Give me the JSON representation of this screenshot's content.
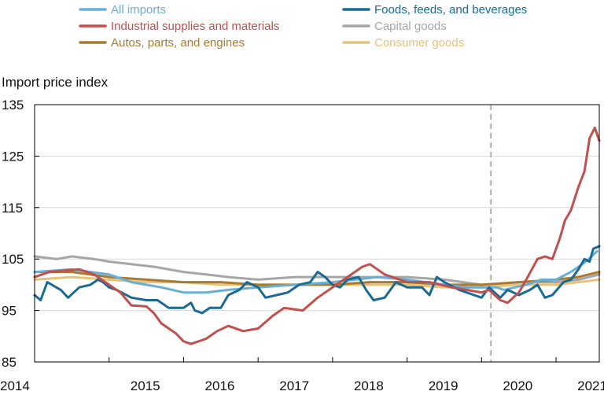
{
  "chart_data": {
    "type": "line",
    "title": "",
    "ylabel": "Import price index",
    "xlabel": "",
    "ylim": [
      85,
      135
    ],
    "xlim": [
      2014.0,
      2021.58
    ],
    "yticks": [
      85,
      95,
      105,
      115,
      125,
      135
    ],
    "xticks": [
      2014,
      2015,
      2016,
      2017,
      2018,
      2019,
      2020,
      2021
    ],
    "grid": "horizontal",
    "legend_position": "top",
    "reference_line": {
      "x": 2020.125,
      "style": "dashed",
      "color": "#999999"
    },
    "series": [
      {
        "name": "All imports",
        "color": "#6aaed6",
        "points": [
          [
            2014.0,
            102.5
          ],
          [
            2014.5,
            103
          ],
          [
            2015.0,
            102
          ],
          [
            2015.3,
            100.5
          ],
          [
            2015.7,
            99.5
          ],
          [
            2016.0,
            98.5
          ],
          [
            2016.3,
            98.5
          ],
          [
            2016.6,
            99
          ],
          [
            2017.0,
            99.5
          ],
          [
            2017.5,
            100
          ],
          [
            2018.0,
            100.5
          ],
          [
            2018.3,
            101
          ],
          [
            2018.6,
            101.5
          ],
          [
            2019.0,
            101
          ],
          [
            2019.5,
            100
          ],
          [
            2019.8,
            99.5
          ],
          [
            2020.0,
            99.5
          ],
          [
            2020.2,
            99.5
          ],
          [
            2020.3,
            99
          ],
          [
            2020.6,
            100
          ],
          [
            2020.8,
            101
          ],
          [
            2021.0,
            101
          ],
          [
            2021.2,
            102.5
          ],
          [
            2021.4,
            104.5
          ],
          [
            2021.55,
            106.5
          ]
        ]
      },
      {
        "name": "Industrial supplies and materials",
        "color": "#c0504d",
        "points": [
          [
            2014.0,
            101.5
          ],
          [
            2014.2,
            102.5
          ],
          [
            2014.6,
            103
          ],
          [
            2014.8,
            102
          ],
          [
            2015.0,
            100
          ],
          [
            2015.15,
            98.5
          ],
          [
            2015.3,
            96
          ],
          [
            2015.5,
            95.8
          ],
          [
            2015.6,
            94.5
          ],
          [
            2015.7,
            92.5
          ],
          [
            2015.9,
            90.5
          ],
          [
            2016.0,
            89
          ],
          [
            2016.1,
            88.5
          ],
          [
            2016.3,
            89.5
          ],
          [
            2016.45,
            91
          ],
          [
            2016.6,
            92
          ],
          [
            2016.8,
            91
          ],
          [
            2017.0,
            91.5
          ],
          [
            2017.2,
            94
          ],
          [
            2017.35,
            95.5
          ],
          [
            2017.6,
            95
          ],
          [
            2017.8,
            97.5
          ],
          [
            2018.0,
            99.5
          ],
          [
            2018.2,
            101.5
          ],
          [
            2018.4,
            103.5
          ],
          [
            2018.5,
            104
          ],
          [
            2018.7,
            102
          ],
          [
            2019.0,
            100.5
          ],
          [
            2019.3,
            100.5
          ],
          [
            2019.6,
            99.5
          ],
          [
            2019.8,
            99
          ],
          [
            2020.0,
            98.5
          ],
          [
            2020.1,
            99
          ],
          [
            2020.25,
            97
          ],
          [
            2020.35,
            96.5
          ],
          [
            2020.5,
            98.5
          ],
          [
            2020.6,
            101
          ],
          [
            2020.75,
            105
          ],
          [
            2020.85,
            105.5
          ],
          [
            2020.95,
            105
          ],
          [
            2021.05,
            109
          ],
          [
            2021.12,
            112.5
          ],
          [
            2021.2,
            114.5
          ],
          [
            2021.3,
            119
          ],
          [
            2021.38,
            122
          ],
          [
            2021.45,
            128.5
          ],
          [
            2021.52,
            130.5
          ],
          [
            2021.58,
            128
          ]
        ]
      },
      {
        "name": "Autos, parts, and engines",
        "color": "#a87b2f",
        "points": [
          [
            2014.0,
            102.5
          ],
          [
            2014.5,
            102.5
          ],
          [
            2015.0,
            101.5
          ],
          [
            2015.5,
            101
          ],
          [
            2016.0,
            100.5
          ],
          [
            2016.5,
            100.5
          ],
          [
            2017.0,
            100
          ],
          [
            2017.5,
            100
          ],
          [
            2018.0,
            100
          ],
          [
            2018.5,
            100.5
          ],
          [
            2019.0,
            100.5
          ],
          [
            2019.5,
            100
          ],
          [
            2020.0,
            100
          ],
          [
            2020.5,
            100.5
          ],
          [
            2021.0,
            101
          ],
          [
            2021.3,
            101.5
          ],
          [
            2021.58,
            102.5
          ]
        ]
      },
      {
        "name": "Foods, feeds, and beverages",
        "color": "#1a6a94",
        "points": [
          [
            2014.0,
            98
          ],
          [
            2014.08,
            97
          ],
          [
            2014.17,
            100.5
          ],
          [
            2014.35,
            99
          ],
          [
            2014.45,
            97.5
          ],
          [
            2014.6,
            99.5
          ],
          [
            2014.75,
            100
          ],
          [
            2014.85,
            101
          ],
          [
            2014.92,
            100.5
          ],
          [
            2015.0,
            99.5
          ],
          [
            2015.1,
            99
          ],
          [
            2015.3,
            97.5
          ],
          [
            2015.5,
            97
          ],
          [
            2015.65,
            97
          ],
          [
            2015.8,
            95.5
          ],
          [
            2016.0,
            95.5
          ],
          [
            2016.1,
            96.5
          ],
          [
            2016.15,
            95
          ],
          [
            2016.25,
            94.5
          ],
          [
            2016.35,
            95.5
          ],
          [
            2016.5,
            95.5
          ],
          [
            2016.6,
            98
          ],
          [
            2016.75,
            99
          ],
          [
            2016.85,
            100.5
          ],
          [
            2017.0,
            99.5
          ],
          [
            2017.1,
            97.5
          ],
          [
            2017.25,
            98
          ],
          [
            2017.4,
            98.5
          ],
          [
            2017.55,
            100
          ],
          [
            2017.7,
            100.5
          ],
          [
            2017.8,
            102.5
          ],
          [
            2017.9,
            101.5
          ],
          [
            2018.0,
            100
          ],
          [
            2018.1,
            99.5
          ],
          [
            2018.2,
            101
          ],
          [
            2018.35,
            101.5
          ],
          [
            2018.45,
            99
          ],
          [
            2018.55,
            97
          ],
          [
            2018.7,
            97.5
          ],
          [
            2018.85,
            100.5
          ],
          [
            2019.0,
            99.5
          ],
          [
            2019.2,
            99.5
          ],
          [
            2019.3,
            98
          ],
          [
            2019.4,
            101.5
          ],
          [
            2019.5,
            100.5
          ],
          [
            2019.7,
            99
          ],
          [
            2019.9,
            98
          ],
          [
            2020.0,
            97.5
          ],
          [
            2020.1,
            99.5
          ],
          [
            2020.25,
            97.5
          ],
          [
            2020.35,
            99
          ],
          [
            2020.5,
            98
          ],
          [
            2020.65,
            99
          ],
          [
            2020.75,
            100
          ],
          [
            2020.85,
            97.5
          ],
          [
            2020.95,
            98
          ],
          [
            2021.1,
            100.5
          ],
          [
            2021.2,
            101
          ],
          [
            2021.3,
            103
          ],
          [
            2021.38,
            105
          ],
          [
            2021.45,
            104.5
          ],
          [
            2021.5,
            107
          ],
          [
            2021.58,
            107.5
          ]
        ]
      },
      {
        "name": "Capital goods",
        "color": "#a6a6a6",
        "points": [
          [
            2014.0,
            105.5
          ],
          [
            2014.3,
            105
          ],
          [
            2014.5,
            105.5
          ],
          [
            2014.8,
            105
          ],
          [
            2015.0,
            104.5
          ],
          [
            2015.3,
            104
          ],
          [
            2015.6,
            103.5
          ],
          [
            2016.0,
            102.5
          ],
          [
            2016.3,
            102
          ],
          [
            2016.6,
            101.5
          ],
          [
            2017.0,
            101
          ],
          [
            2017.5,
            101.5
          ],
          [
            2018.0,
            101.5
          ],
          [
            2018.5,
            101.5
          ],
          [
            2019.0,
            101.5
          ],
          [
            2019.5,
            101
          ],
          [
            2020.0,
            100
          ],
          [
            2020.5,
            100.5
          ],
          [
            2021.0,
            100.5
          ],
          [
            2021.3,
            101
          ],
          [
            2021.58,
            102
          ]
        ]
      },
      {
        "name": "Consumer goods",
        "color": "#e6c27a",
        "points": [
          [
            2014.0,
            101
          ],
          [
            2014.5,
            101.5
          ],
          [
            2015.0,
            101
          ],
          [
            2015.5,
            100.5
          ],
          [
            2016.0,
            100.5
          ],
          [
            2016.5,
            100
          ],
          [
            2017.0,
            100
          ],
          [
            2017.5,
            100
          ],
          [
            2018.0,
            100
          ],
          [
            2018.5,
            100
          ],
          [
            2019.0,
            100
          ],
          [
            2019.5,
            99.5
          ],
          [
            2020.0,
            99.5
          ],
          [
            2020.5,
            100
          ],
          [
            2021.0,
            100
          ],
          [
            2021.3,
            100.5
          ],
          [
            2021.58,
            101
          ]
        ]
      }
    ]
  }
}
